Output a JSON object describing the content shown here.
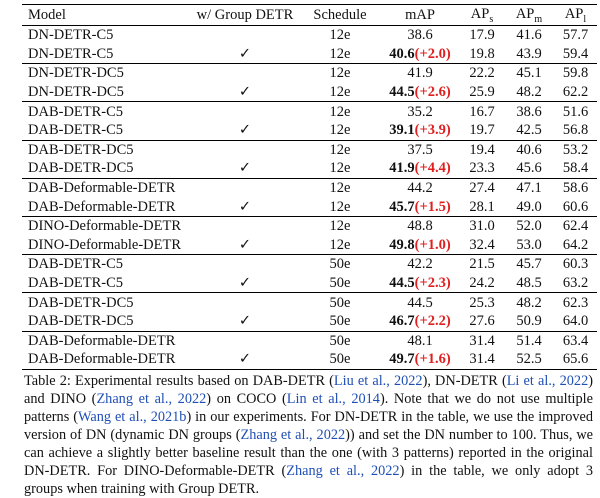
{
  "table": {
    "header": [
      {
        "text": "Model"
      },
      {
        "text": "w/ Group DETR"
      },
      {
        "text": "Schedule"
      },
      {
        "text": "mAP"
      },
      {
        "text": "AP",
        "sub": "s"
      },
      {
        "text": "AP",
        "sub": "m"
      },
      {
        "text": "AP",
        "sub": "l"
      }
    ],
    "groups": [
      [
        {
          "model": "DN-DETR-C5",
          "schedule": "12e",
          "map": "38.6",
          "ap_s": "17.9",
          "ap_m": "41.6",
          "ap_l": "57.7"
        },
        {
          "model": "DN-DETR-C5",
          "group_detr": "✓",
          "schedule": "12e",
          "map": "40.6",
          "gain": "(+2.0)",
          "ap_s": "19.8",
          "ap_m": "43.9",
          "ap_l": "59.4"
        }
      ],
      [
        {
          "model": "DN-DETR-DC5",
          "schedule": "12e",
          "map": "41.9",
          "ap_s": "22.2",
          "ap_m": "45.1",
          "ap_l": "59.8"
        },
        {
          "model": "DN-DETR-DC5",
          "group_detr": "✓",
          "schedule": "12e",
          "map": "44.5",
          "gain": "(+2.6)",
          "ap_s": "25.9",
          "ap_m": "48.2",
          "ap_l": "62.2"
        }
      ],
      [
        {
          "model": "DAB-DETR-C5",
          "schedule": "12e",
          "map": "35.2",
          "ap_s": "16.7",
          "ap_m": "38.6",
          "ap_l": "51.6"
        },
        {
          "model": "DAB-DETR-C5",
          "group_detr": "✓",
          "schedule": "12e",
          "map": "39.1",
          "gain": "(+3.9)",
          "ap_s": "19.7",
          "ap_m": "42.5",
          "ap_l": "56.8"
        }
      ],
      [
        {
          "model": "DAB-DETR-DC5",
          "schedule": "12e",
          "map": "37.5",
          "ap_s": "19.4",
          "ap_m": "40.6",
          "ap_l": "53.2"
        },
        {
          "model": "DAB-DETR-DC5",
          "group_detr": "✓",
          "schedule": "12e",
          "map": "41.9",
          "gain": "(+4.4)",
          "ap_s": "23.3",
          "ap_m": "45.6",
          "ap_l": "58.4"
        }
      ],
      [
        {
          "model": "DAB-Deformable-DETR",
          "schedule": "12e",
          "map": "44.2",
          "ap_s": "27.4",
          "ap_m": "47.1",
          "ap_l": "58.6"
        },
        {
          "model": "DAB-Deformable-DETR",
          "group_detr": "✓",
          "schedule": "12e",
          "map": "45.7",
          "gain": "(+1.5)",
          "ap_s": "28.1",
          "ap_m": "49.0",
          "ap_l": "60.6"
        }
      ],
      [
        {
          "model": "DINO-Deformable-DETR",
          "schedule": "12e",
          "map": "48.8",
          "ap_s": "31.0",
          "ap_m": "52.0",
          "ap_l": "62.4"
        },
        {
          "model": "DINO-Deformable-DETR",
          "group_detr": "✓",
          "schedule": "12e",
          "map": "49.8",
          "gain": "(+1.0)",
          "ap_s": "32.4",
          "ap_m": "53.0",
          "ap_l": "64.2"
        }
      ],
      [
        {
          "model": "DAB-DETR-C5",
          "schedule": "50e",
          "map": "42.2",
          "ap_s": "21.5",
          "ap_m": "45.7",
          "ap_l": "60.3"
        },
        {
          "model": "DAB-DETR-C5",
          "group_detr": "✓",
          "schedule": "50e",
          "map": "44.5",
          "gain": "(+2.3)",
          "ap_s": "24.2",
          "ap_m": "48.5",
          "ap_l": "63.2"
        }
      ],
      [
        {
          "model": "DAB-DETR-DC5",
          "schedule": "50e",
          "map": "44.5",
          "ap_s": "25.3",
          "ap_m": "48.2",
          "ap_l": "62.3"
        },
        {
          "model": "DAB-DETR-DC5",
          "group_detr": "✓",
          "schedule": "50e",
          "map": "46.7",
          "gain": "(+2.2)",
          "ap_s": "27.6",
          "ap_m": "50.9",
          "ap_l": "64.0"
        }
      ],
      [
        {
          "model": "DAB-Deformable-DETR",
          "schedule": "50e",
          "map": "48.1",
          "ap_s": "31.4",
          "ap_m": "51.4",
          "ap_l": "63.4"
        },
        {
          "model": "DAB-Deformable-DETR",
          "group_detr": "✓",
          "schedule": "50e",
          "map": "49.7",
          "gain": "(+1.6)",
          "ap_s": "31.4",
          "ap_m": "52.5",
          "ap_l": "65.6"
        }
      ]
    ]
  },
  "caption": [
    {
      "text": "Table 2: Experimental results based on DAB-DETR ("
    },
    {
      "cite": "Liu et al., 2022"
    },
    {
      "text": "), DN-DETR ("
    },
    {
      "cite": "Li et al., 2022"
    },
    {
      "text": ") and DINO ("
    },
    {
      "cite": "Zhang et al., 2022"
    },
    {
      "text": ") on COCO ("
    },
    {
      "cite": "Lin et al., 2014"
    },
    {
      "text": "). Note that we do not use multiple patterns ("
    },
    {
      "cite": "Wang et al., 2021b"
    },
    {
      "text": ") in our experiments. For DN-DETR in the table, we use the improved version of DN (dynamic DN groups ("
    },
    {
      "cite": "Zhang et al., 2022"
    },
    {
      "text": ")) and set the DN number to 100. Thus, we can achieve a slightly better baseline result than the one (with 3 patterns) reported in the original DN-DETR. For DINO-Deformable-DETR ("
    },
    {
      "cite": "Zhang et al., 2022"
    },
    {
      "text": ") in the table, we only adopt 3 groups when training with Group DETR."
    }
  ]
}
